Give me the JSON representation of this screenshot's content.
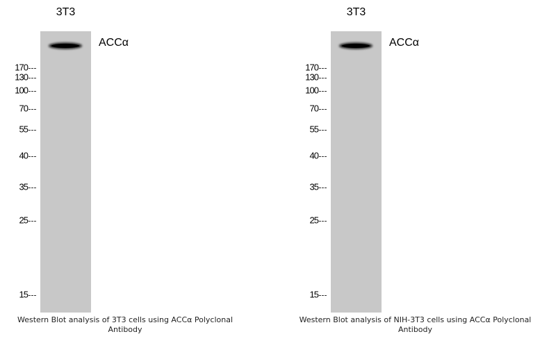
{
  "panels": [
    {
      "lane_label": "3T3",
      "band_label": "ACCα",
      "markers": [
        "170",
        "130",
        "100",
        "70",
        "55",
        "40",
        "35",
        "25",
        "15"
      ],
      "caption": "Western Blot analysis of 3T3 cells using ACCα Polyclonal Antibody"
    },
    {
      "lane_label": "3T3",
      "band_label": "ACCα",
      "markers": [
        "170",
        "130",
        "100",
        "70",
        "55",
        "40",
        "35",
        "25",
        "15"
      ],
      "caption": "Western Blot analysis of NIH-3T3 cells using ACCα Polyclonal Antibody"
    }
  ]
}
